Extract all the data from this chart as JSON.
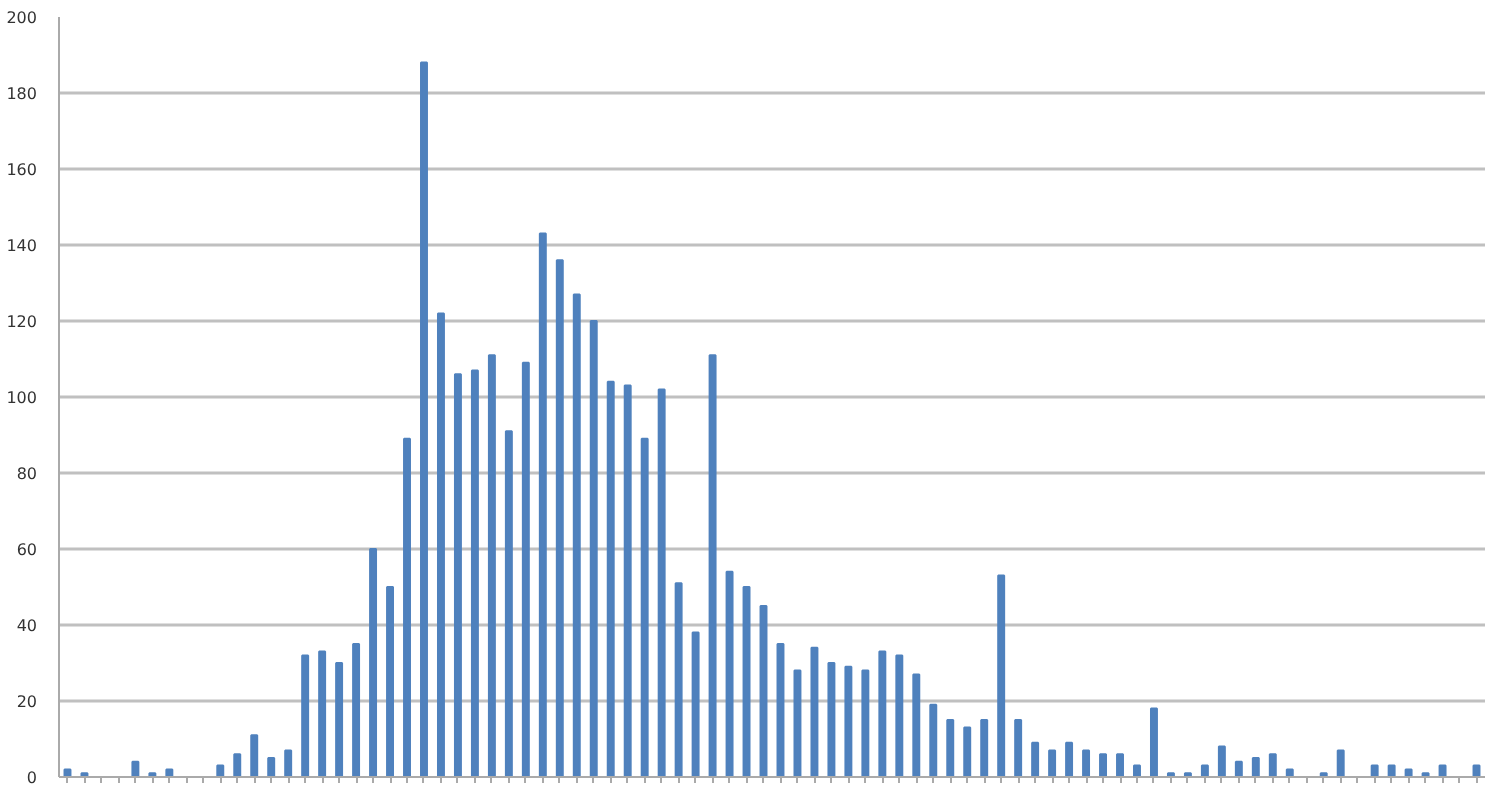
{
  "chart_data": {
    "type": "bar",
    "categories": [
      null,
      null,
      null,
      null,
      null,
      null,
      null,
      null,
      null,
      null,
      null,
      null,
      null,
      null,
      null,
      null,
      null,
      null,
      null,
      null,
      null,
      null,
      null,
      null,
      null,
      null,
      null,
      null,
      null,
      null,
      null,
      null,
      null,
      null,
      null,
      null,
      null,
      null,
      null,
      null,
      null,
      null,
      null,
      null,
      null,
      null,
      null,
      null,
      null,
      null,
      null,
      null,
      null,
      null,
      null,
      null,
      null,
      null,
      null,
      null,
      null,
      null,
      null,
      null,
      null,
      null,
      null,
      null,
      null,
      null,
      null,
      null,
      null,
      null,
      null,
      null,
      null,
      null,
      null,
      null,
      null,
      null,
      null,
      null
    ],
    "values": [
      2,
      1,
      0,
      0,
      4,
      1,
      2,
      0,
      0,
      3,
      6,
      11,
      5,
      7,
      32,
      33,
      30,
      35,
      60,
      50,
      89,
      188,
      122,
      106,
      107,
      111,
      91,
      109,
      143,
      136,
      127,
      120,
      104,
      103,
      89,
      102,
      51,
      38,
      111,
      54,
      50,
      45,
      35,
      28,
      34,
      30,
      29,
      28,
      33,
      32,
      27,
      19,
      15,
      13,
      15,
      53,
      15,
      9,
      7,
      9,
      7,
      6,
      6,
      3,
      18,
      1,
      1,
      3,
      8,
      4,
      5,
      6,
      2,
      0,
      1,
      7,
      0,
      3,
      3,
      2,
      1,
      3,
      0,
      3
    ],
    "color": "#4f81bd",
    "ylim": [
      0,
      200
    ],
    "yticks": [
      0,
      20,
      40,
      60,
      80,
      100,
      120,
      140,
      160,
      180,
      200
    ],
    "grid": "y"
  }
}
